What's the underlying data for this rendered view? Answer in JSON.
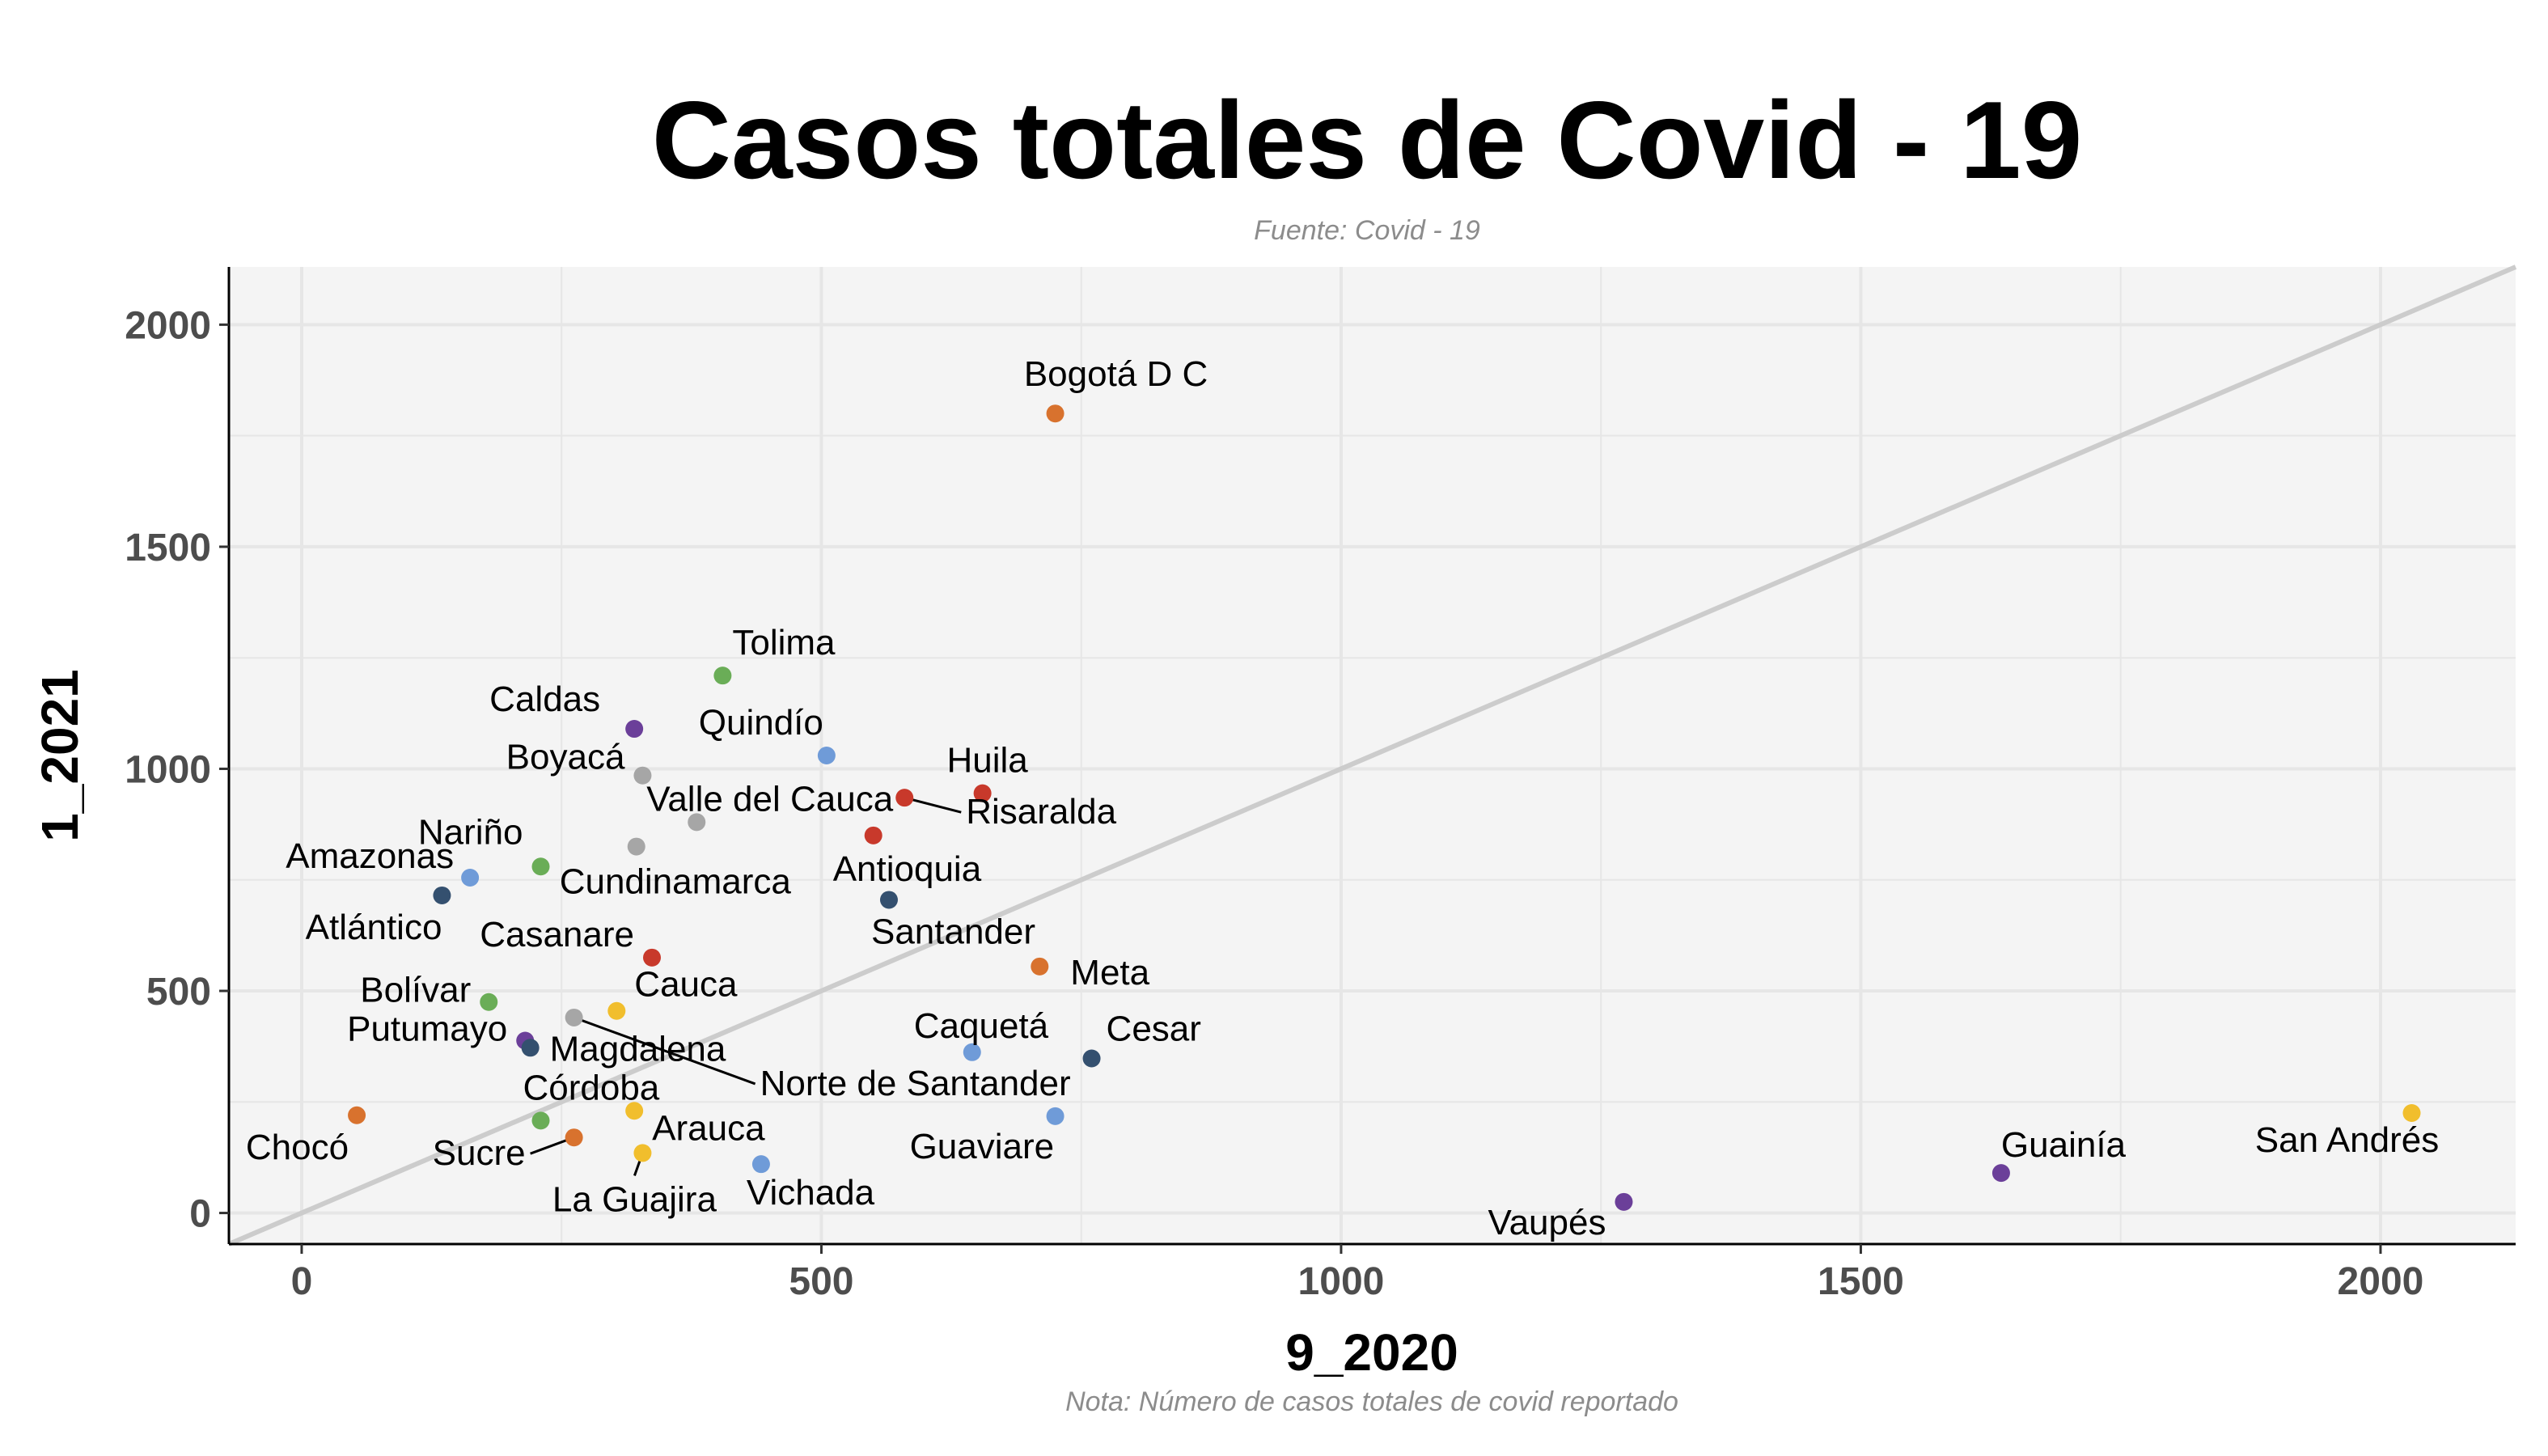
{
  "chart_data": {
    "type": "scatter",
    "title": "Casos totales de Covid - 19",
    "subtitle": "Fuente: Covid - 19",
    "caption": "Nota: Número de casos totales de covid reportado",
    "xlabel": "9_2020",
    "ylabel": "1_2021",
    "xlim": [
      -70,
      2130
    ],
    "ylim": [
      -70,
      2130
    ],
    "xticks": [
      0,
      500,
      1000,
      1500,
      2000
    ],
    "yticks": [
      0,
      500,
      1000,
      1500,
      2000
    ],
    "grid": true,
    "reference_line": "y = x",
    "colors": {
      "panel": "#f4f4f4",
      "grid": "#e6e6e6",
      "reference_line": "#cccccc",
      "orange": "#d8722e",
      "blue": "#6f9bd8",
      "green": "#6aad57",
      "purple": "#6b3f99",
      "gray": "#a6a6a6",
      "red": "#c8392b",
      "navy": "#34506f",
      "yellow": "#f1be2d"
    },
    "points": [
      {
        "label": "Bogotá D C",
        "x": 725,
        "y": 1800,
        "color": "#d8722e"
      },
      {
        "label": "Tolima",
        "x": 405,
        "y": 1210,
        "color": "#6aad57"
      },
      {
        "label": "Caldas",
        "x": 320,
        "y": 1090,
        "color": "#6b3f99"
      },
      {
        "label": "Quindío",
        "x": 505,
        "y": 1030,
        "color": "#6f9bd8"
      },
      {
        "label": "Boyacá",
        "x": 328,
        "y": 985,
        "color": "#a6a6a6"
      },
      {
        "label": "Huila",
        "x": 655,
        "y": 945,
        "color": "#c8392b"
      },
      {
        "label": "Risaralda",
        "x": 580,
        "y": 935,
        "color": "#c8392b"
      },
      {
        "label": "Valle del Cauca",
        "x": 380,
        "y": 880,
        "color": "#a6a6a6"
      },
      {
        "label": "Antioquia",
        "x": 550,
        "y": 850,
        "color": "#c8392b"
      },
      {
        "label": "Nariño",
        "x": 230,
        "y": 780,
        "color": "#6aad57"
      },
      {
        "label": "Cundinamarca",
        "x": 322,
        "y": 825,
        "color": "#a6a6a6"
      },
      {
        "label": "Amazonas",
        "x": 162,
        "y": 755,
        "color": "#6f9bd8"
      },
      {
        "label": "Atlántico",
        "x": 135,
        "y": 715,
        "color": "#34506f"
      },
      {
        "label": "Santander",
        "x": 565,
        "y": 705,
        "color": "#34506f"
      },
      {
        "label": "Casanare",
        "x": 337,
        "y": 575,
        "color": "#c8392b"
      },
      {
        "label": "Meta",
        "x": 710,
        "y": 555,
        "color": "#d8722e"
      },
      {
        "label": "Bolívar",
        "x": 180,
        "y": 475,
        "color": "#6aad57"
      },
      {
        "label": "Cauca",
        "x": 303,
        "y": 455,
        "color": "#f1be2d"
      },
      {
        "label": "Norte de Santander",
        "x": 262,
        "y": 440,
        "color": "#a6a6a6"
      },
      {
        "label": "Putumayo",
        "x": 215,
        "y": 388,
        "color": "#6b3f99"
      },
      {
        "label": "Magdalena",
        "x": 220,
        "y": 372,
        "color": "#34506f"
      },
      {
        "label": "Caquetá",
        "x": 645,
        "y": 362,
        "color": "#6f9bd8"
      },
      {
        "label": "Cesar",
        "x": 760,
        "y": 348,
        "color": "#34506f"
      },
      {
        "label": "Chocó",
        "x": 53,
        "y": 220,
        "color": "#d8722e"
      },
      {
        "label": "Córdoba",
        "x": 230,
        "y": 208,
        "color": "#6aad57"
      },
      {
        "label": "Arauca",
        "x": 320,
        "y": 230,
        "color": "#f1be2d"
      },
      {
        "label": "Guaviare",
        "x": 725,
        "y": 218,
        "color": "#6f9bd8"
      },
      {
        "label": "Sucre",
        "x": 262,
        "y": 170,
        "color": "#d8722e"
      },
      {
        "label": "La Guajira",
        "x": 328,
        "y": 135,
        "color": "#f1be2d"
      },
      {
        "label": "Vichada",
        "x": 442,
        "y": 110,
        "color": "#6f9bd8"
      },
      {
        "label": "Guainía",
        "x": 1635,
        "y": 90,
        "color": "#6b3f99"
      },
      {
        "label": "San Andrés",
        "x": 2030,
        "y": 225,
        "color": "#f1be2d"
      },
      {
        "label": "Vaupés",
        "x": 1272,
        "y": 25,
        "color": "#6b3f99"
      }
    ]
  }
}
